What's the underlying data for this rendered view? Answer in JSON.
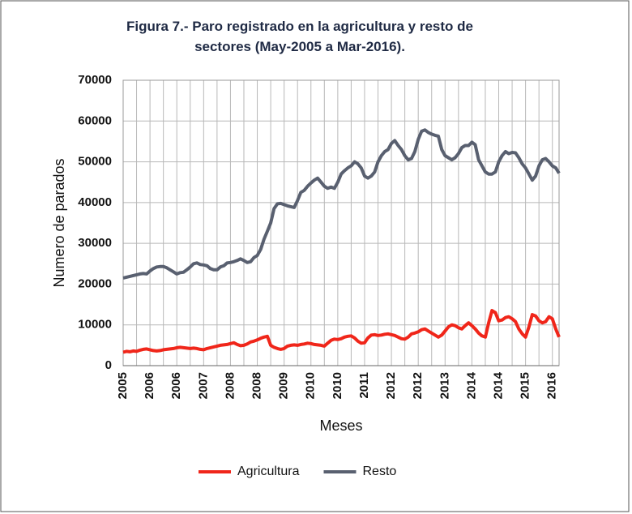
{
  "chart_data": {
    "type": "line",
    "title": "Figura 7.- Paro registrado en la agricultura y resto de sectores (May-2005 a Mar-2016).",
    "x_label": "Meses",
    "y_label": "Numero de parados",
    "categories": [
      "2005",
      null,
      null,
      null,
      null,
      null,
      null,
      null,
      "2006",
      null,
      null,
      null,
      null,
      null,
      null,
      null,
      "2006",
      null,
      null,
      null,
      null,
      null,
      null,
      null,
      "2007",
      null,
      null,
      null,
      null,
      null,
      null,
      null,
      "2008",
      null,
      null,
      null,
      null,
      null,
      null,
      null,
      "2008",
      null,
      null,
      null,
      null,
      null,
      null,
      null,
      "2009",
      null,
      null,
      null,
      null,
      null,
      null,
      null,
      "2010",
      null,
      null,
      null,
      null,
      null,
      null,
      null,
      "2010",
      null,
      null,
      null,
      null,
      null,
      null,
      null,
      "2011",
      null,
      null,
      null,
      null,
      null,
      null,
      null,
      "2012",
      null,
      null,
      null,
      null,
      null,
      null,
      null,
      "2012",
      null,
      null,
      null,
      null,
      null,
      null,
      null,
      "2013",
      null,
      null,
      null,
      null,
      null,
      null,
      null,
      "2014",
      null,
      null,
      null,
      null,
      null,
      null,
      null,
      "2014",
      null,
      null,
      null,
      null,
      null,
      null,
      null,
      "2015",
      null,
      null,
      null,
      null,
      null,
      null,
      null,
      "2016",
      null,
      null
    ],
    "series": [
      {
        "name": "Agricultura",
        "color": "#f0261a",
        "values": [
          3300,
          3500,
          3400,
          3600,
          3500,
          3800,
          4000,
          4100,
          3900,
          3700,
          3600,
          3700,
          3900,
          4000,
          4100,
          4200,
          4400,
          4500,
          4400,
          4300,
          4200,
          4300,
          4200,
          4000,
          3900,
          4200,
          4400,
          4600,
          4800,
          5000,
          5100,
          5200,
          5400,
          5600,
          5200,
          4900,
          5000,
          5300,
          5800,
          6000,
          6300,
          6700,
          7000,
          7200,
          5000,
          4500,
          4200,
          4000,
          4200,
          4800,
          5000,
          5100,
          5000,
          5200,
          5300,
          5500,
          5400,
          5200,
          5100,
          5000,
          4800,
          5500,
          6200,
          6500,
          6400,
          6600,
          7000,
          7200,
          7300,
          6800,
          6000,
          5500,
          5600,
          6800,
          7500,
          7600,
          7400,
          7500,
          7700,
          7800,
          7600,
          7400,
          7000,
          6600,
          6500,
          7000,
          7800,
          8000,
          8300,
          8800,
          9000,
          8500,
          8000,
          7500,
          7000,
          7500,
          8500,
          9500,
          10000,
          9800,
          9300,
          9000,
          9800,
          10500,
          9800,
          9000,
          8000,
          7300,
          7000,
          10500,
          13500,
          13000,
          11000,
          11200,
          11800,
          12000,
          11500,
          10800,
          9000,
          7800,
          7000,
          9500,
          12500,
          12200,
          11000,
          10500,
          10800,
          12000,
          11500,
          9000,
          7000
        ]
      },
      {
        "name": "Resto",
        "color": "#596070",
        "values": [
          21500,
          21700,
          21900,
          22100,
          22300,
          22500,
          22600,
          22500,
          23200,
          23800,
          24200,
          24300,
          24300,
          24000,
          23500,
          23000,
          22500,
          22800,
          22900,
          23500,
          24200,
          25000,
          25200,
          24800,
          24700,
          24500,
          23800,
          23500,
          23500,
          24200,
          24500,
          25200,
          25300,
          25500,
          25800,
          26200,
          25800,
          25300,
          25500,
          26500,
          27000,
          28500,
          31000,
          33000,
          35000,
          38500,
          39700,
          39800,
          39500,
          39200,
          39000,
          38800,
          40500,
          42500,
          43000,
          44000,
          44800,
          45500,
          46000,
          45000,
          44000,
          43500,
          43800,
          43500,
          45000,
          47000,
          47800,
          48500,
          49000,
          50000,
          49500,
          48500,
          46500,
          46000,
          46500,
          47500,
          50000,
          51500,
          52500,
          53000,
          54500,
          55200,
          54000,
          53000,
          51500,
          50500,
          50800,
          52500,
          55500,
          57500,
          57800,
          57200,
          56800,
          56500,
          56300,
          53000,
          51500,
          51000,
          50500,
          51000,
          52000,
          53500,
          54000,
          54000,
          54800,
          54200,
          50500,
          49000,
          47500,
          47000,
          47000,
          47500,
          50000,
          51500,
          52500,
          52000,
          52300,
          52200,
          51000,
          49500,
          48500,
          47000,
          45500,
          46500,
          49000,
          50500,
          50800,
          50000,
          49000,
          48500,
          47200
        ]
      }
    ],
    "ylim": [
      0,
      70000
    ],
    "yticks": [
      0,
      10000,
      20000,
      30000,
      40000,
      50000,
      60000,
      70000
    ],
    "grid": true,
    "legend": "bottom"
  }
}
